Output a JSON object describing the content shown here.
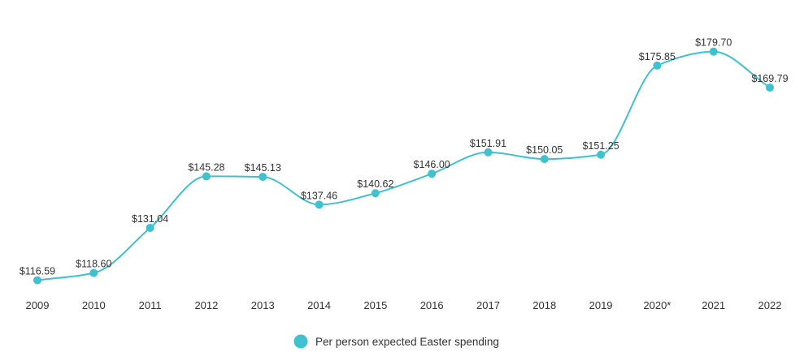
{
  "chart_data": {
    "type": "line",
    "categories": [
      "2009",
      "2010",
      "2011",
      "2012",
      "2013",
      "2014",
      "2015",
      "2016",
      "2017",
      "2018",
      "2019",
      "2020*",
      "2021",
      "2022"
    ],
    "series": [
      {
        "name": "Per person expected Easter spending",
        "values": [
          116.59,
          118.6,
          131.04,
          145.28,
          145.13,
          137.46,
          140.62,
          146.0,
          151.91,
          150.05,
          151.25,
          175.85,
          179.7,
          169.79
        ],
        "labels": [
          "$116.59",
          "$118.60",
          "$131.04",
          "$145.28",
          "$145.13",
          "$137.46",
          "$140.62",
          "$146.00",
          "$151.91",
          "$150.05",
          "$151.25",
          "$175.85",
          "$179.70",
          "$169.79"
        ]
      }
    ],
    "title": "",
    "xlabel": "",
    "ylabel": "",
    "ylim": [
      110,
      185
    ],
    "grid": false,
    "legend_position": "bottom-center",
    "smooth": true,
    "colors": {
      "series": "#3fc1cf",
      "text": "#333333"
    }
  }
}
